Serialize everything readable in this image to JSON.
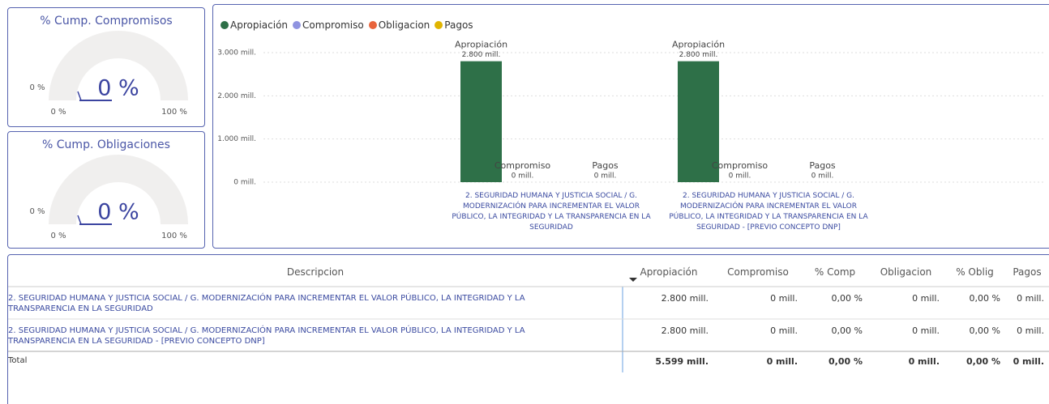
{
  "chart_data": [
    {
      "type": "gauge",
      "title": "% Cump. Compromisos",
      "values": [
        0
      ],
      "value_labels": [
        "0 %"
      ],
      "target": {
        "value": 0,
        "label": "0 %"
      },
      "ylim": [
        0,
        100
      ],
      "yticks": [
        {
          "value": 0,
          "label": "0 %"
        },
        {
          "value": 100,
          "label": "100 %"
        }
      ],
      "color": "#3b44a0",
      "track_color": "#f0efee"
    },
    {
      "type": "gauge",
      "title": "% Cump. Obligaciones",
      "values": [
        0
      ],
      "value_labels": [
        "0 %"
      ],
      "target": {
        "value": 0,
        "label": "0 %"
      },
      "ylim": [
        0,
        100
      ],
      "yticks": [
        {
          "value": 0,
          "label": "0 %"
        },
        {
          "value": 100,
          "label": "100 %"
        }
      ],
      "color": "#3b44a0",
      "track_color": "#f0efee"
    },
    {
      "type": "bar",
      "legend": "top-left",
      "grid": true,
      "categories": [
        "2. SEGURIDAD HUMANA Y JUSTICIA SOCIAL / G. MODERNIZACIÓN PARA INCREMENTAR EL VALOR PÚBLICO, LA INTEGRIDAD Y LA TRANSPARENCIA EN LA SEGURIDAD",
        "2. SEGURIDAD HUMANA Y JUSTICIA SOCIAL / G. MODERNIZACIÓN PARA INCREMENTAR EL VALOR PÚBLICO, LA INTEGRIDAD Y LA TRANSPARENCIA EN LA SEGURIDAD - [PREVIO CONCEPTO DNP]"
      ],
      "series": [
        {
          "name": "Apropiación",
          "color": "#2e7048",
          "values": [
            2800,
            2800
          ],
          "value_labels": [
            "2.800 mill.",
            "2.800 mill."
          ]
        },
        {
          "name": "Compromiso",
          "color": "#8f93e0",
          "values": [
            0,
            0
          ],
          "value_labels": [
            "0 mill.",
            "0 mill."
          ]
        },
        {
          "name": "Obligacion",
          "color": "#e8643c",
          "values": [
            0,
            0
          ]
        },
        {
          "name": "Pagos",
          "color": "#e0b400",
          "values": [
            0,
            0
          ],
          "value_labels": [
            "0 mill.",
            "0 mill."
          ]
        }
      ],
      "ylim": [
        0,
        3200
      ],
      "yticks": [
        {
          "value": 0,
          "label": "0 mill."
        },
        {
          "value": 1000,
          "label": "1.000 mill."
        },
        {
          "value": 2000,
          "label": "2.000 mill."
        },
        {
          "value": 3000,
          "label": "3.000 mill."
        }
      ]
    }
  ],
  "table": {
    "columns": [
      "Descripcion",
      "Apropiación",
      "Compromiso",
      "% Comp",
      "Obligacion",
      "% Oblig",
      "Pagos"
    ],
    "rows": [
      [
        "2. SEGURIDAD HUMANA Y JUSTICIA SOCIAL / G. MODERNIZACIÓN PARA INCREMENTAR EL VALOR PÚBLICO, LA INTEGRIDAD Y LA TRANSPARENCIA EN LA SEGURIDAD",
        "2.800 mill.",
        "0 mill.",
        "0,00 %",
        "0 mill.",
        "0,00 %",
        "0 mill."
      ],
      [
        "2. SEGURIDAD HUMANA Y JUSTICIA SOCIAL / G. MODERNIZACIÓN PARA INCREMENTAR EL VALOR PÚBLICO, LA INTEGRIDAD Y LA TRANSPARENCIA EN LA SEGURIDAD - [PREVIO CONCEPTO DNP]",
        "2.800 mill.",
        "0 mill.",
        "0,00 %",
        "0 mill.",
        "0,00 %",
        "0 mill."
      ]
    ],
    "total": [
      "Total",
      "5.599 mill.",
      "0 mill.",
      "0,00 %",
      "0 mill.",
      "0,00 %",
      "0 mill."
    ]
  }
}
